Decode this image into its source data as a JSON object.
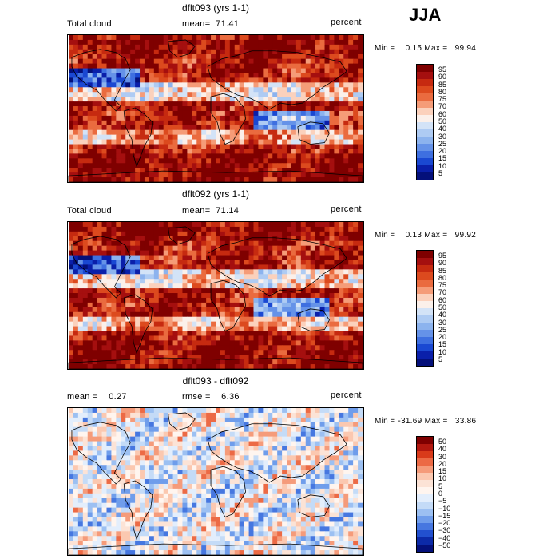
{
  "season": "JJA",
  "panels": [
    {
      "title": "dflt093 (yrs 1-1)",
      "left_label": "Total cloud",
      "center_label": "mean=",
      "center_value": "71.41",
      "right_label": "percent",
      "min_label": "Min =",
      "min_value": "0.15",
      "max_label": "Max =",
      "max_value": "99.94",
      "colorbar_labels": [
        "95",
        "90",
        "85",
        "80",
        "75",
        "70",
        "60",
        "50",
        "40",
        "30",
        "25",
        "20",
        "15",
        "10",
        "5"
      ]
    },
    {
      "title": "dflt092 (yrs 1-1)",
      "left_label": "Total cloud",
      "center_label": "mean=",
      "center_value": "71.14",
      "right_label": "percent",
      "min_label": "Min =",
      "min_value": "0.13",
      "max_label": "Max =",
      "max_value": "99.92",
      "colorbar_labels": [
        "95",
        "90",
        "85",
        "80",
        "75",
        "70",
        "60",
        "50",
        "40",
        "30",
        "25",
        "20",
        "15",
        "10",
        "5"
      ]
    },
    {
      "title": "dflt093 - dflt092",
      "left_label": "mean =",
      "left_value": "0.27",
      "center_label": "rmse =",
      "center_value": "6.36",
      "right_label": "percent",
      "min_label": "Min =",
      "min_value": "-31.69",
      "max_label": "Max =",
      "max_value": "33.86",
      "colorbar_labels": [
        "50",
        "40",
        "30",
        "20",
        "15",
        "10",
        "5",
        "0",
        "−5",
        "−10",
        "−15",
        "−20",
        "−30",
        "−40",
        "−50"
      ]
    }
  ],
  "colors": {
    "abs_scale": [
      "#7f0000",
      "#a50f0f",
      "#c62a10",
      "#dc4a1e",
      "#ea6b3f",
      "#f59c78",
      "#fbd1bc",
      "#fbf0ea",
      "#d3e3f7",
      "#aecbf3",
      "#8cb3ee",
      "#6592e8",
      "#3e6fe0",
      "#1a48d2",
      "#0a1faa",
      "#04107a"
    ],
    "diff_scale": [
      "#7f0000",
      "#b2180f",
      "#d93a1a",
      "#ec6a45",
      "#f59b7a",
      "#fbc8b0",
      "#fce3d6",
      "#fff5ef",
      "#e3eefc",
      "#c4dbf7",
      "#9cc0f2",
      "#6f9deb",
      "#4677e0",
      "#2250cf",
      "#0c2aa8",
      "#04107a"
    ],
    "coast": "#000000"
  }
}
